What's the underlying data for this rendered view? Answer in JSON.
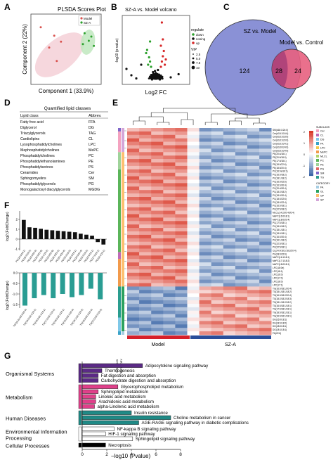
{
  "panels": {
    "A": {
      "letter": "A",
      "title": "PLSDA Scores Plot",
      "xlabel": "Component 1 (33.9%)",
      "ylabel": "Component 2 (22%)",
      "legend": [
        "Model",
        "SZ-A"
      ],
      "colors": {
        "model": "#e8a0b0",
        "sza": "#7ccf7a"
      }
    },
    "B": {
      "letter": "B",
      "title": "SZ-A vs. Model volcano",
      "xlabel": "Log2 FC",
      "ylabel": "-log10 (p-value)",
      "legend_regulate_title": "regulate",
      "legend_regulate": [
        "down",
        "nosing",
        "up"
      ],
      "legend_vip_title": "VIP",
      "legend_vip": [
        "2.5",
        "5.0",
        "7.5",
        "10"
      ],
      "colors": {
        "down": "#2ca02c",
        "nosig": "#111111",
        "up": "#d62728"
      }
    },
    "C": {
      "letter": "C",
      "left_label": "SZ vs. Model",
      "right_label": "Model vs. Control",
      "left_only": "124",
      "overlap": "28",
      "right_only": "24",
      "colors": {
        "left": "#8a91d6",
        "right": "#e8607f"
      }
    },
    "D": {
      "letter": "D",
      "title": "Quantified lipid classes",
      "col1": "Lipid class",
      "col2": "Abbrev.",
      "rows": [
        [
          "Fatty free acid",
          "FFA"
        ],
        [
          "Diglycerol",
          "DG"
        ],
        [
          "Triacylglycerols",
          "TAG"
        ],
        [
          "Cardiolipins",
          "CL"
        ],
        [
          "Lysophosphatidylcholines",
          "LPC"
        ],
        [
          "Mephosphatidylcholines",
          "MePC"
        ],
        [
          "Phosphatidylcholines",
          "PC"
        ],
        [
          "Phosphatidylethanolamines",
          "PE"
        ],
        [
          "Phosphatidylserines",
          "PS"
        ],
        [
          "Ceramides",
          "Cer"
        ],
        [
          "Sphingomyelins",
          "SM"
        ],
        [
          "Phosphatidylglycerols",
          "PG"
        ],
        [
          "Monogalactosyl diacylglycerols",
          "MGDG"
        ]
      ]
    },
    "E": {
      "letter": "E",
      "group_left": "Model",
      "group_right": "SZ-A",
      "row_labels": [
        "SM(d18:1/24:0)",
        "Cer(d18:1/16:0)",
        "Cer(d18:1/18:0)",
        "Cer(d18:1/20:0)",
        "Cer(d18:1/24:1)",
        "Cer(d18:0/24:0)",
        "Cer(d18:1/24:0)",
        "PE(20:4/18:1)",
        "PE(20:5/18:0)",
        "PE(17:0/18:1)",
        "PE(18:0/22:6)",
        "PE(18:0/20:4)",
        "PC(16:0a/16:1)",
        "PC(16:0/18:2)",
        "PC(18:1/18:2)",
        "PC(16:0/22:6)",
        "PC(16:0/20:4)",
        "PC(20:4/20:4)",
        "PC(18:2/18:2)",
        "PC(18:0/20:4)",
        "PC(18:0/22:6)",
        "PC(18:0/22:4)",
        "PC(16:0/18:1)",
        "PC(22:5/18:2)",
        "MLCL(14:2/20:4/20:4)",
        "MePC(16:0/18:1)",
        "MePC(18:0/20:4)",
        "PC(17:0/18:1)",
        "PC(18:0/18:2)",
        "PC(18:1/18:1)",
        "PC(18:0/18:1)",
        "PC(16:0/20:4)",
        "PC(16:1/18:2)",
        "PC(22:6/18:1)",
        "PC(22:5/18:1)",
        "CL(24:0/18:1/18:2/20:4)",
        "PG(18:0/22:6)",
        "MePC(16:1/18:1)",
        "MePC(17:1/18:2)",
        "MePC(18:0/18:1)",
        "LPC(18:0e)",
        "LPC(18:1)",
        "LPC(16:0)",
        "LPC(17:0)",
        "LPC(18:0)",
        "LPC(17:1)",
        "TG(16:0/18:1/20:4)",
        "TG(18:1/18:1/18:2)",
        "TG(16:0/18:2/20:4)",
        "TG(18:2/18:2/18:3)",
        "TG(18:1/18:2/18:2)",
        "TG(16:0/18:1/18:1)",
        "TG(17:0/18:1/18:1)",
        "TG(18:0/18:1/18:1)",
        "TG(16:0/16:1/18:1)",
        "DG(16:0/18:1)",
        "DG(18:1/18:2)",
        "DG(18:0/18:1)",
        "DG(18:1/18:1)",
        "FA(22:6)"
      ],
      "subclass_title": "SUBCLASS",
      "subclasses": [
        "Cer",
        "CL",
        "DG",
        "FA",
        "LPC",
        "MePC",
        "MLCL",
        "PC",
        "PE",
        "PG",
        "SM",
        "TG"
      ],
      "category_title": "CATEGORY",
      "categories": [
        "FA",
        "GL",
        "GP",
        "SP"
      ],
      "scale_ticks": [
        "2",
        "1",
        "0",
        "-1",
        "-2"
      ],
      "side_labels": [
        "SUBCLASS",
        "CATEGORY"
      ]
    },
    "F": {
      "letter": "F",
      "ylabel_top": "log2 (FoldChange)",
      "ylabel_bottom": "log2 (FoldChange)",
      "top_ticks": [
        "2",
        "1",
        "0",
        "-1"
      ],
      "bottom_ticks": [
        "0.0",
        "-0.5",
        "-1.0",
        "-1.5"
      ],
      "top_labels": [
        "PC(18:0/18:1)",
        "PC(16:0/18:2)",
        "PC(18:0/20:4)",
        "PC(16:0/22:6)",
        "PC(18:1/18:2)",
        "PC(18:0/22:6)",
        "PC(16:0/20:4)",
        "PC(20:4/20:4)",
        "PC(18:2/18:2)",
        "PC(16:0/18:1)",
        "PC(18:0/22:4)",
        "PC(22:5/18:2)",
        "PC(22:6/18:1)",
        "PC(17:0/18:1)",
        "PC(18:1/18:1)"
      ],
      "top_values": [
        1.95,
        1.2,
        1.15,
        1.05,
        0.95,
        0.9,
        0.85,
        0.8,
        0.75,
        0.7,
        0.55,
        0.45,
        0.35,
        -0.3,
        -0.55
      ],
      "bottom_labels": [
        "TG(18:2e/18:2/20:4)",
        "TG(16:0/18:1/18:1)",
        "TG(16:0/16:1/18:1)",
        "TG(17:0/18:1/18:1)",
        "TG(18:0/18:1/18:1)",
        "TG(16:0/18:1/20:4)",
        "TG(18:1/18:1/18:2)",
        "TG(16:0/18:2/20:4)",
        "TG(22:5/18:2/18:2)"
      ],
      "bottom_values": [
        -1.55,
        -1.2,
        -1.05,
        -1.2,
        -1.0,
        -1.15,
        -1.05,
        -0.75,
        -1.25
      ]
    },
    "G": {
      "letter": "G",
      "xlabel": "−log10 (Pvalue)",
      "xticks": [
        "0",
        "2",
        "4",
        "6",
        "8"
      ],
      "groups": [
        {
          "name": "Organismal Systems",
          "color": "#5b2a86",
          "bars": [
            {
              "label": "Adipocytokine signaling pathway",
              "value": 4.9
            },
            {
              "label": "Thermogenesis",
              "value": 1.6
            },
            {
              "label": "Fat digestion and absorption",
              "value": 1.3
            },
            {
              "label": "Carbohydrate digestion and absorption",
              "value": 1.3
            }
          ]
        },
        {
          "name": "Metabolism",
          "color": "#e0408a",
          "bars": [
            {
              "label": "Glycerophospholipid metabolism",
              "value": 2.9
            },
            {
              "label": "Sphingolipid metabolism",
              "value": 1.3
            },
            {
              "label": "Linoleic acid metabolism",
              "value": 1.1
            },
            {
              "label": "Arachidonic acid metabolism",
              "value": 1.1
            },
            {
              "label": "alpha-Linolenic acid metabolism",
              "value": 1.0
            }
          ]
        },
        {
          "name": "Human Diseases",
          "color": "#1f8a86",
          "bars": [
            {
              "label": "Insulin resistance",
              "value": 4.0
            },
            {
              "label": "Choline metabolism in cancer",
              "value": 7.2
            },
            {
              "label": "AGE-RAGE signaling pathway in diabetic complications",
              "value": 4.6
            }
          ]
        },
        {
          "name": "Environmental Information Processing",
          "color": "#ffffff",
          "bars": [
            {
              "label": "NF-kappa B signaling pathway",
              "value": 2.6
            },
            {
              "label": "HIF-1 signaling pathway",
              "value": 1.9
            },
            {
              "label": "Sphingolipid signaling pathway",
              "value": 4.1
            }
          ]
        },
        {
          "name": "Cellular Processes",
          "color": "#000000",
          "bars": [
            {
              "label": "Necroptosis",
              "value": 1.9
            }
          ]
        }
      ]
    }
  },
  "chart_data": [
    {
      "type": "scatter",
      "title": "PLSDA Scores Plot",
      "xlabel": "Component 1 (33.9%)",
      "ylabel": "Component 2 (22%)",
      "series": [
        {
          "name": "Model",
          "points": [
            [
              -3.0,
              2.6
            ],
            [
              -1.4,
              1.6
            ],
            [
              -0.6,
              0.9
            ],
            [
              -2.0,
              0.2
            ],
            [
              -1.1,
              -1.4
            ]
          ]
        },
        {
          "name": "SZ-A",
          "points": [
            [
              2.2,
              1.9
            ],
            [
              3.0,
              1.5
            ],
            [
              2.7,
              1.0
            ],
            [
              2.0,
              0.6
            ],
            [
              3.3,
              0.4
            ]
          ]
        }
      ],
      "legend": "top-right"
    },
    {
      "type": "scatter",
      "title": "SZ-A vs. Model volcano",
      "xlabel": "Log2 FC",
      "ylabel": "-log10 (p-value)",
      "series": [
        {
          "name": "down",
          "points": [
            [
              -0.9,
              3.0
            ],
            [
              -0.7,
              2.3
            ],
            [
              -0.6,
              1.9
            ],
            [
              -0.8,
              1.6
            ],
            [
              -0.5,
              1.4
            ],
            [
              -0.6,
              3.8
            ],
            [
              -1.0,
              2.7
            ]
          ]
        },
        {
          "name": "nosing",
          "points": [
            [
              -3.0,
              1.2
            ],
            [
              -2.5,
              0.6
            ],
            [
              -2.0,
              0.3
            ],
            [
              -1.5,
              1.6
            ],
            [
              -0.4,
              0.2
            ],
            [
              -0.2,
              0.5
            ],
            [
              0.1,
              0.3
            ],
            [
              0.3,
              0.6
            ],
            [
              0.4,
              0.2
            ],
            [
              1.5,
              0.4
            ],
            [
              2.3,
              0.7
            ],
            [
              0.0,
              0.8
            ],
            [
              -0.1,
              1.0
            ],
            [
              0.2,
              1.1
            ],
            [
              -0.3,
              0.9
            ]
          ]
        },
        {
          "name": "up",
          "points": [
            [
              0.5,
              1.4
            ],
            [
              0.6,
              1.9
            ],
            [
              0.7,
              2.4
            ],
            [
              0.8,
              2.9
            ],
            [
              0.5,
              3.4
            ],
            [
              0.7,
              4.0
            ],
            [
              1.0,
              2.1
            ],
            [
              0.9,
              1.6
            ],
            [
              0.6,
              5.6
            ]
          ]
        }
      ],
      "legend": "right"
    },
    {
      "type": "bar",
      "ylabel": "log2 (FoldChange)",
      "categories": [
        "PC(18:0/18:1)",
        "PC(16:0/18:2)",
        "PC(18:0/20:4)",
        "PC(16:0/22:6)",
        "PC(18:1/18:2)",
        "PC(18:0/22:6)",
        "PC(16:0/20:4)",
        "PC(20:4/20:4)",
        "PC(18:2/18:2)",
        "PC(16:0/18:1)",
        "PC(18:0/22:4)",
        "PC(22:5/18:2)",
        "PC(22:6/18:1)",
        "PC(17:0/18:1)",
        "PC(18:1/18:1)"
      ],
      "values": [
        1.95,
        1.2,
        1.15,
        1.05,
        0.95,
        0.9,
        0.85,
        0.8,
        0.75,
        0.7,
        0.55,
        0.45,
        0.35,
        -0.3,
        -0.55
      ],
      "ylim": [
        -1,
        2
      ]
    },
    {
      "type": "bar",
      "ylabel": "log2 (FoldChange)",
      "categories": [
        "TG(18:2e/18:2/20:4)",
        "TG(16:0/18:1/18:1)",
        "TG(16:0/16:1/18:1)",
        "TG(17:0/18:1/18:1)",
        "TG(18:0/18:1/18:1)",
        "TG(16:0/18:1/20:4)",
        "TG(18:1/18:1/18:2)",
        "TG(16:0/18:2/20:4)",
        "TG(22:5/18:2/18:2)"
      ],
      "values": [
        -1.55,
        -1.2,
        -1.05,
        -1.2,
        -1.0,
        -1.15,
        -1.05,
        -0.75,
        -1.25
      ],
      "ylim": [
        -1.5,
        0
      ]
    },
    {
      "type": "bar",
      "xlabel": "−log10 (Pvalue)",
      "categories": [
        "Adipocytokine signaling pathway",
        "Thermogenesis",
        "Fat digestion and absorption",
        "Carbohydrate digestion and absorption",
        "Glycerophospholipid metabolism",
        "Sphingolipid metabolism",
        "Linoleic acid metabolism",
        "Arachidonic acid metabolism",
        "alpha-Linolenic acid metabolism",
        "Insulin resistance",
        "Choline metabolism in cancer",
        "AGE-RAGE signaling pathway in diabetic complications",
        "NF-kappa B signaling pathway",
        "HIF-1 signaling pathway",
        "Sphingolipid signaling pathway",
        "Necroptosis"
      ],
      "values": [
        4.9,
        1.6,
        1.3,
        1.3,
        2.9,
        1.3,
        1.1,
        1.1,
        1.0,
        4.0,
        7.2,
        4.6,
        2.6,
        1.9,
        4.1,
        1.9
      ],
      "xlim": [
        0,
        8
      ]
    }
  ]
}
